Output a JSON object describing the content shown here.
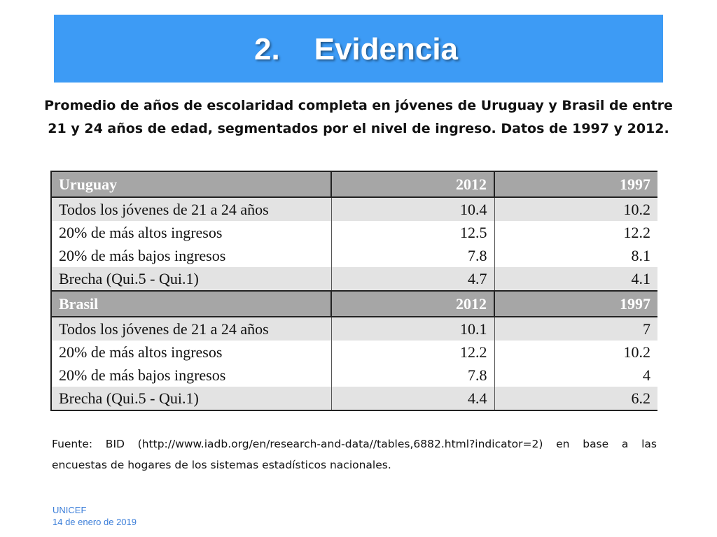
{
  "slide": {
    "title": "2.    Evidencia",
    "subtitle": "Promedio de años de escolaridad completa en jóvenes de Uruguay y Brasil de entre 21 y 24 años de edad, segmentados por el nivel de ingreso. Datos de 1997 y 2012.",
    "title_bar_color": "#3d9bf5"
  },
  "table": {
    "uruguay": {
      "header": [
        "Uruguay",
        "2012",
        "1997"
      ],
      "rows": [
        [
          "Todos los jóvenes de 21 a 24 años",
          "10.4",
          "10.2"
        ],
        [
          "20% de más altos ingresos",
          "12.5",
          "12.2"
        ],
        [
          "20% de más bajos ingresos",
          "7.8",
          "8.1"
        ],
        [
          "Brecha (Qui.5 - Qui.1)",
          "4.7",
          "4.1"
        ]
      ]
    },
    "brasil": {
      "header": [
        "Brasil",
        "2012",
        "1997"
      ],
      "rows": [
        [
          "Todos los jóvenes de 21 a 24 años",
          "10.1",
          "7"
        ],
        [
          "20% de más altos ingresos",
          "12.2",
          "10.2"
        ],
        [
          "20% de más bajos ingresos",
          "7.8",
          "4"
        ],
        [
          "Brecha (Qui.5 - Qui.1)",
          "4.4",
          "6.2"
        ]
      ]
    }
  },
  "source": "Fuente: BID (http://www.iadb.org/en/research-and-data//tables,6882.html?indicator=2) en base a las encuestas de hogares de los sistemas estadísticos nacionales.",
  "footer": {
    "organization": "UNICEF",
    "date": "14 de enero de 2019",
    "color": "#3d7fd9"
  }
}
